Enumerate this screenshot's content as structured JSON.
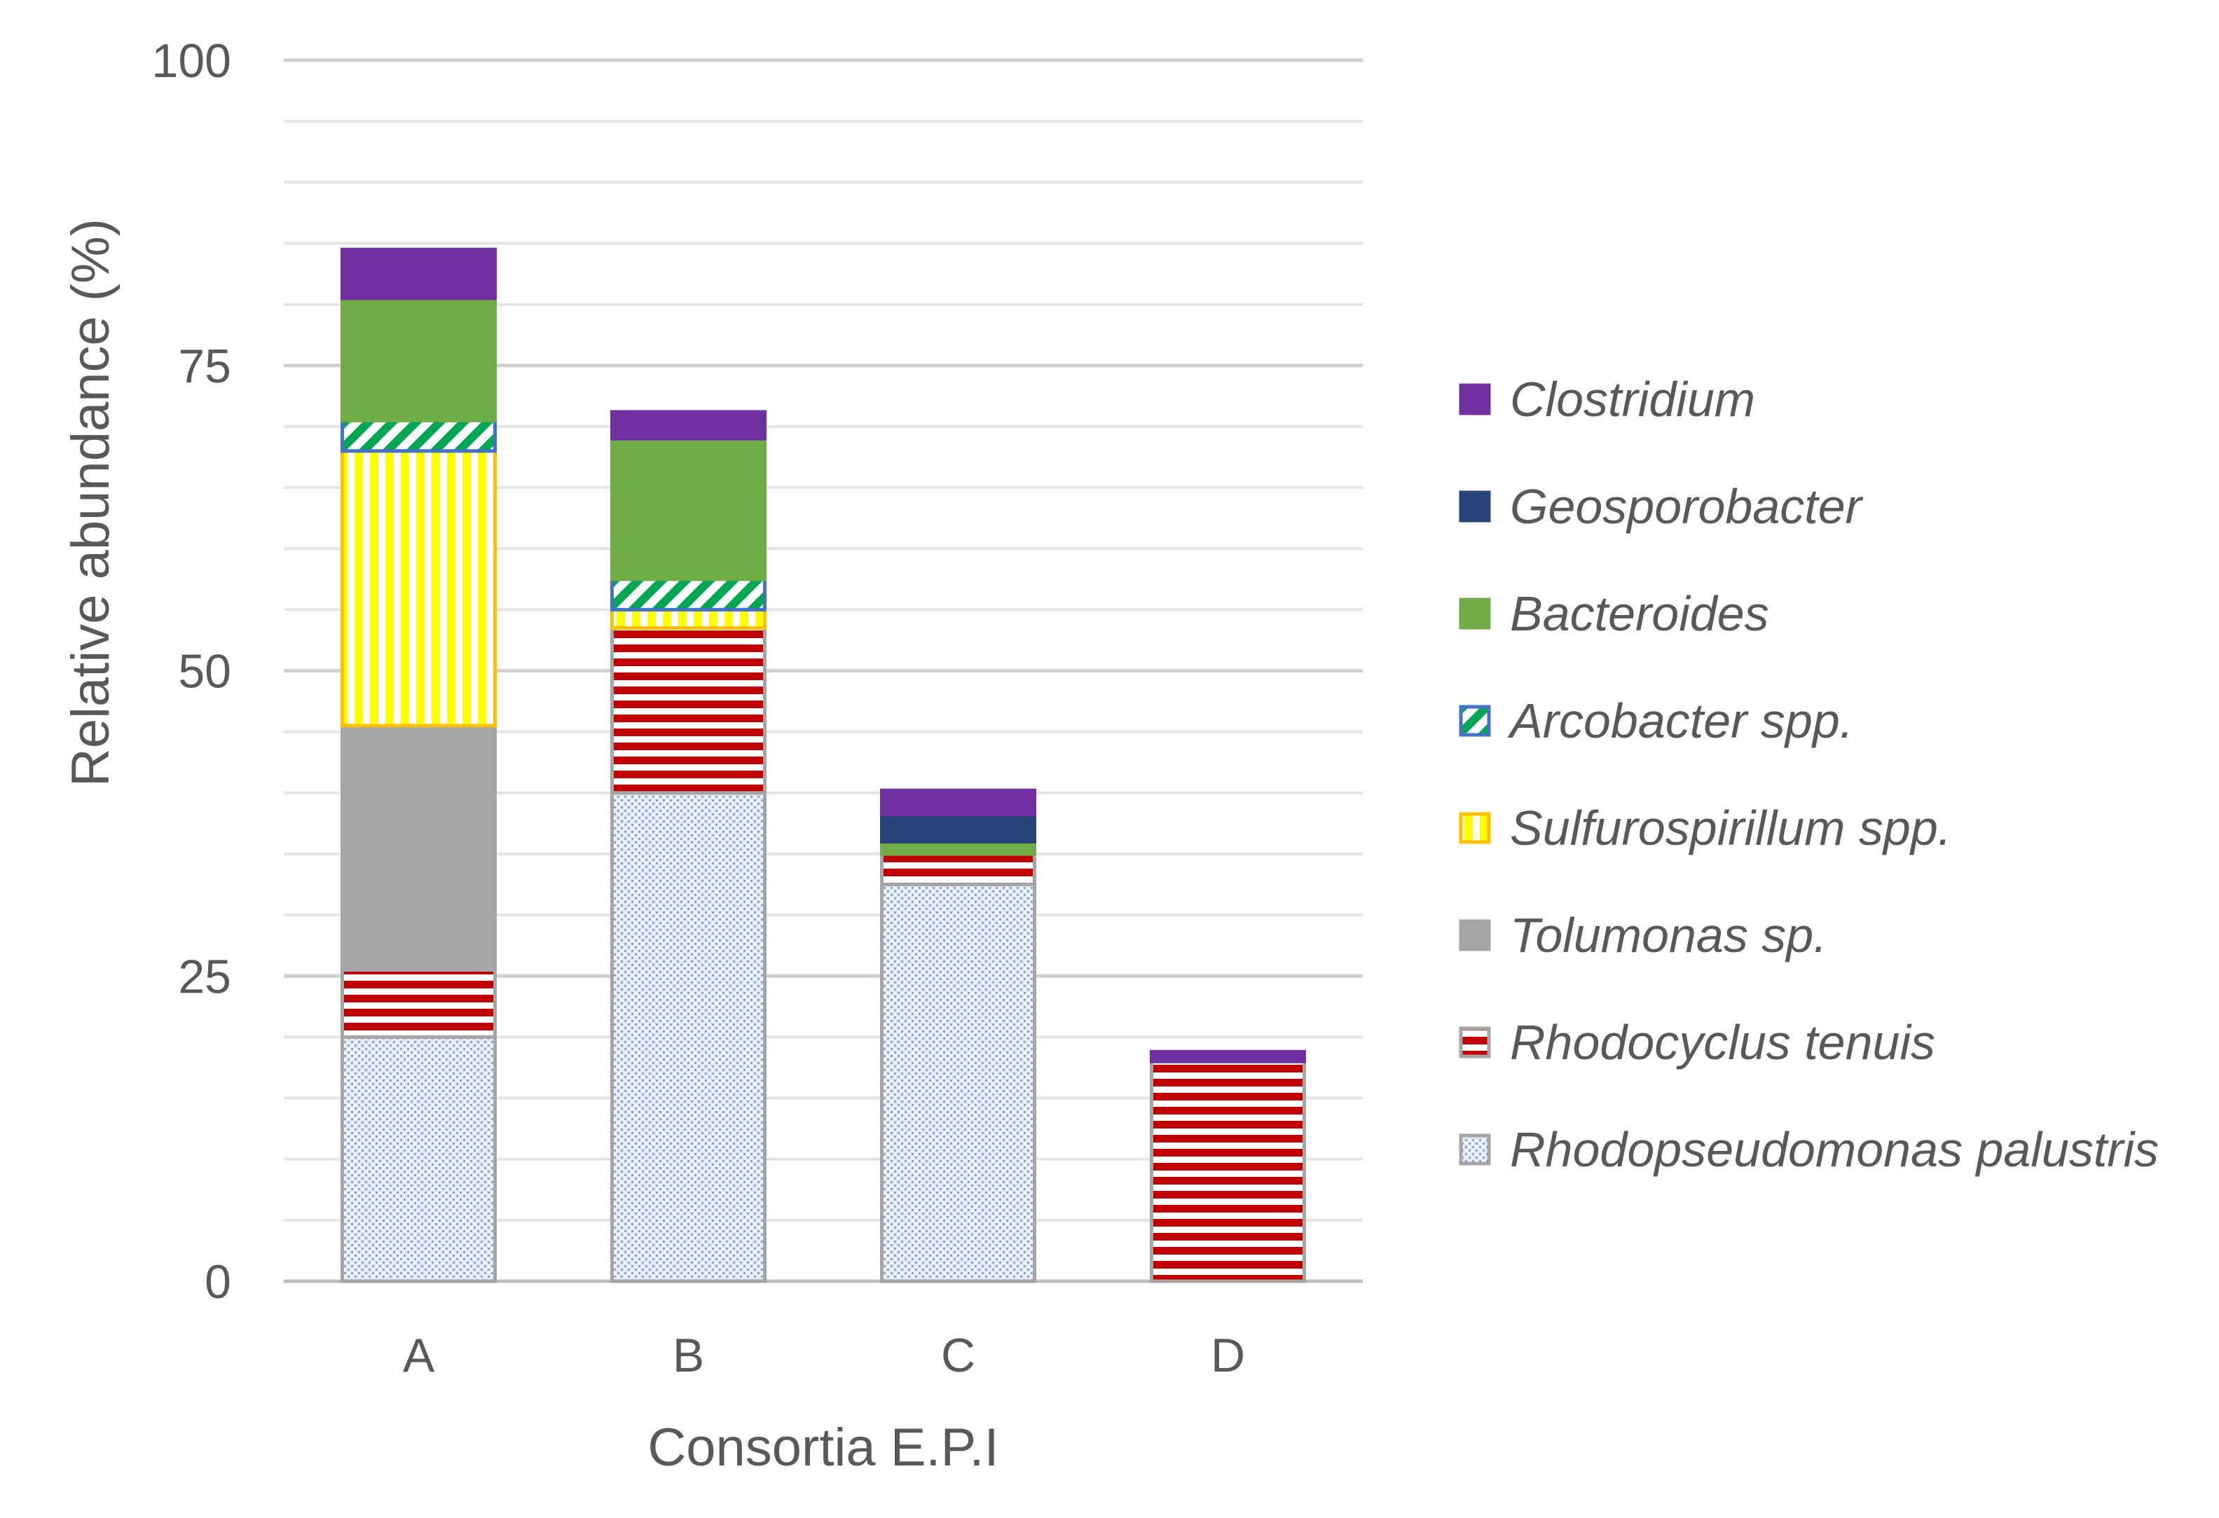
{
  "chart_data": {
    "type": "bar",
    "stacked": true,
    "title": "",
    "xlabel": "Consortia E.P.I",
    "ylabel": "Relative abundance (%)",
    "ylim": [
      0,
      100
    ],
    "yticks": [
      0,
      25,
      50,
      75,
      100
    ],
    "minor_gridlines_step": 5,
    "legend_position": "right",
    "categories": [
      "A",
      "B",
      "C",
      "D"
    ],
    "series": [
      {
        "name": "Rhodopseudomonas palustris",
        "pattern": "dots",
        "color": "#4472C4",
        "values": [
          20,
          40,
          32.5,
          0
        ]
      },
      {
        "name": "Rhodocyclus tenuis",
        "pattern": "hlines",
        "color": "#C00000",
        "values": [
          5.5,
          13.5,
          2.5,
          18
        ]
      },
      {
        "name": "Tolumonas sp.",
        "pattern": "solid",
        "color": "#A5A5A5",
        "values": [
          20,
          0,
          0,
          0
        ]
      },
      {
        "name": "Sulfurospirillum spp.",
        "pattern": "vlines",
        "color": "#FFFF00",
        "values": [
          22.5,
          1.5,
          0,
          0
        ]
      },
      {
        "name": "Arcobacter spp.",
        "pattern": "diag",
        "color": "#70AD47",
        "values": [
          2.5,
          2.5,
          0,
          0
        ]
      },
      {
        "name": "Bacteroides",
        "pattern": "solid",
        "color": "#70AD47",
        "values": [
          10,
          11.5,
          1,
          0
        ]
      },
      {
        "name": "Geosporobacter",
        "pattern": "solid",
        "color": "#264478",
        "values": [
          0,
          0,
          2.2,
          0
        ]
      },
      {
        "name": "Clostridium",
        "pattern": "solid",
        "color": "#7030A0",
        "values": [
          4,
          2.2,
          2,
          0.8
        ]
      }
    ]
  }
}
